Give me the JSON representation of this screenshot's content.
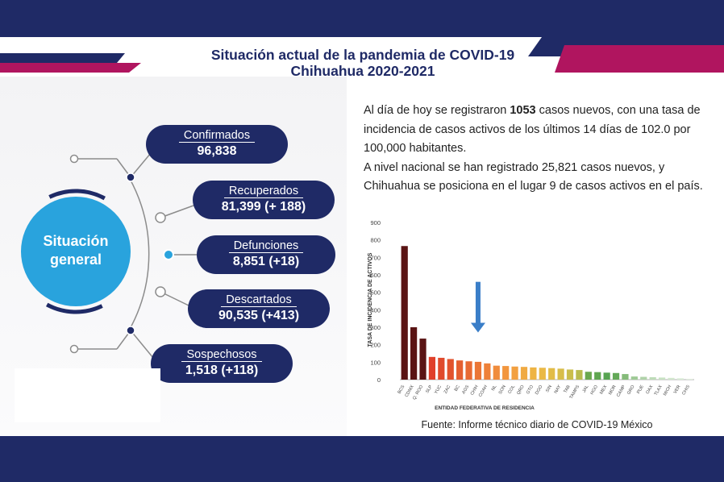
{
  "title": {
    "line1": "Situación actual de la pandemia de COVID-19",
    "line2": "Chihuahua 2020-2021"
  },
  "center_label": {
    "line1": "Situación",
    "line2": "general"
  },
  "stats": [
    {
      "label": "Confirmados",
      "value": "96,838"
    },
    {
      "label": "Recuperados",
      "value": "81,399 (+ 188)"
    },
    {
      "label": "Defunciones",
      "value": "8,851 (+18)"
    },
    {
      "label": "Descartados",
      "value": "90,535 (+413)"
    },
    {
      "label": "Sospechosos",
      "value": "1,518 (+118)"
    }
  ],
  "paragraph": {
    "p1_before": "Al día de hoy se registraron ",
    "p1_bold": "1053",
    "p1_after": " casos nuevos, con una tasa de incidencia de casos activos de los últimos 14 días de 102.0 por 100,000 habitantes.",
    "p2": "A nivel nacional se han registrado 25,821 casos nuevos, y Chihuahua se posiciona en el lugar 9 de casos activos en el país."
  },
  "source": "Fuente: Informe técnico diario de COVID-19 México",
  "colors": {
    "navy": "#1f2a66",
    "magenta": "#b0155f",
    "cyan": "#29a3dd",
    "arrow": "#3a7ec8"
  },
  "chart_data": {
    "type": "bar",
    "xlabel": "ENTIDAD FEDERATIVA DE RESIDENCIA",
    "ylabel": "TASA DE INCIDENCIA DE ACTIVOS",
    "ylim": [
      0,
      900
    ],
    "yticks": [
      0,
      100,
      200,
      300,
      400,
      500,
      600,
      700,
      800,
      900
    ],
    "grid": false,
    "annotation": "down-arrow above CHIH",
    "categories": [
      "BCS",
      "CDMX",
      "Q. ROO",
      "SLP",
      "YUC",
      "ZAC",
      "BC",
      "AGS",
      "CHIH",
      "COAH",
      "NL",
      "SON",
      "COL",
      "QRO",
      "GTO",
      "DGO",
      "SIN",
      "NAY",
      "TAB",
      "TAMPS",
      "JAL",
      "HGO",
      "MEX",
      "MOR",
      "CAMP",
      "GRO",
      "PUE",
      "OAX",
      "TLAX",
      "MICH",
      "VER",
      "CHIS"
    ],
    "values": [
      765,
      300,
      235,
      130,
      125,
      118,
      110,
      105,
      102,
      93,
      80,
      78,
      75,
      73,
      70,
      68,
      66,
      63,
      58,
      55,
      45,
      43,
      40,
      38,
      32,
      18,
      16,
      14,
      12,
      10,
      8,
      5
    ],
    "colors": [
      "#5a1414",
      "#5a1414",
      "#5a1414",
      "#e0402b",
      "#e04a2c",
      "#e2532d",
      "#e55f30",
      "#e86a33",
      "#eb7636",
      "#ee8139",
      "#f08c3c",
      "#f2963e",
      "#f2a040",
      "#f0aa42",
      "#eeb444",
      "#eab946",
      "#e2bc48",
      "#d8bd4a",
      "#cabd4c",
      "#b9bb4e",
      "#6aa84f",
      "#5fa650",
      "#57a452",
      "#63a958",
      "#85bb7a",
      "#9fca96",
      "#b0d3a9",
      "#bedcb8",
      "#c8e2c3",
      "#d2e8ce",
      "#dbeed8",
      "#e4f2e1"
    ]
  }
}
